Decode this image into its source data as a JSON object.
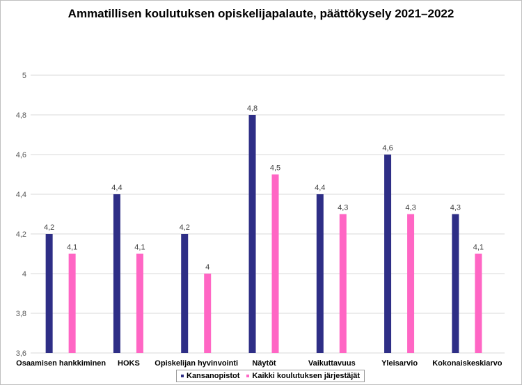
{
  "chart_data": {
    "type": "bar",
    "title": "Ammatillisen koulutuksen opiskelijapalaute, päättökysely 2021–2022",
    "categories": [
      "Osaamisen hankkiminen",
      "HOKS",
      "Opiskelijan hyvinvointi",
      "Näytöt",
      "Vaikuttavuus",
      "Yleisarvio",
      "Kokonaiskeskiarvo"
    ],
    "series": [
      {
        "name": "Kansanopistot",
        "color": "#2e2e86",
        "values": [
          4.2,
          4.4,
          4.2,
          4.8,
          4.4,
          4.6,
          4.3
        ],
        "labels": [
          "4,2",
          "4,4",
          "4,2",
          "4,8",
          "4,4",
          "4,6",
          "4,3"
        ]
      },
      {
        "name": "Kaikki koulutuksen järjestäjät",
        "color": "#ff66c4",
        "values": [
          4.1,
          4.1,
          4.0,
          4.5,
          4.3,
          4.3,
          4.1
        ],
        "labels": [
          "4,1",
          "4,1",
          "4",
          "4,5",
          "4,3",
          "4,3",
          "4,1"
        ]
      }
    ],
    "ylim": [
      3.6,
      5
    ],
    "yticks": [
      3.6,
      3.8,
      4,
      4.2,
      4.4,
      4.6,
      4.8,
      5
    ],
    "ytick_labels": [
      "3,6",
      "3,8",
      "4",
      "4,2",
      "4,4",
      "4,6",
      "4,8",
      "5"
    ],
    "grid": true,
    "legend_position": "bottom-center"
  }
}
